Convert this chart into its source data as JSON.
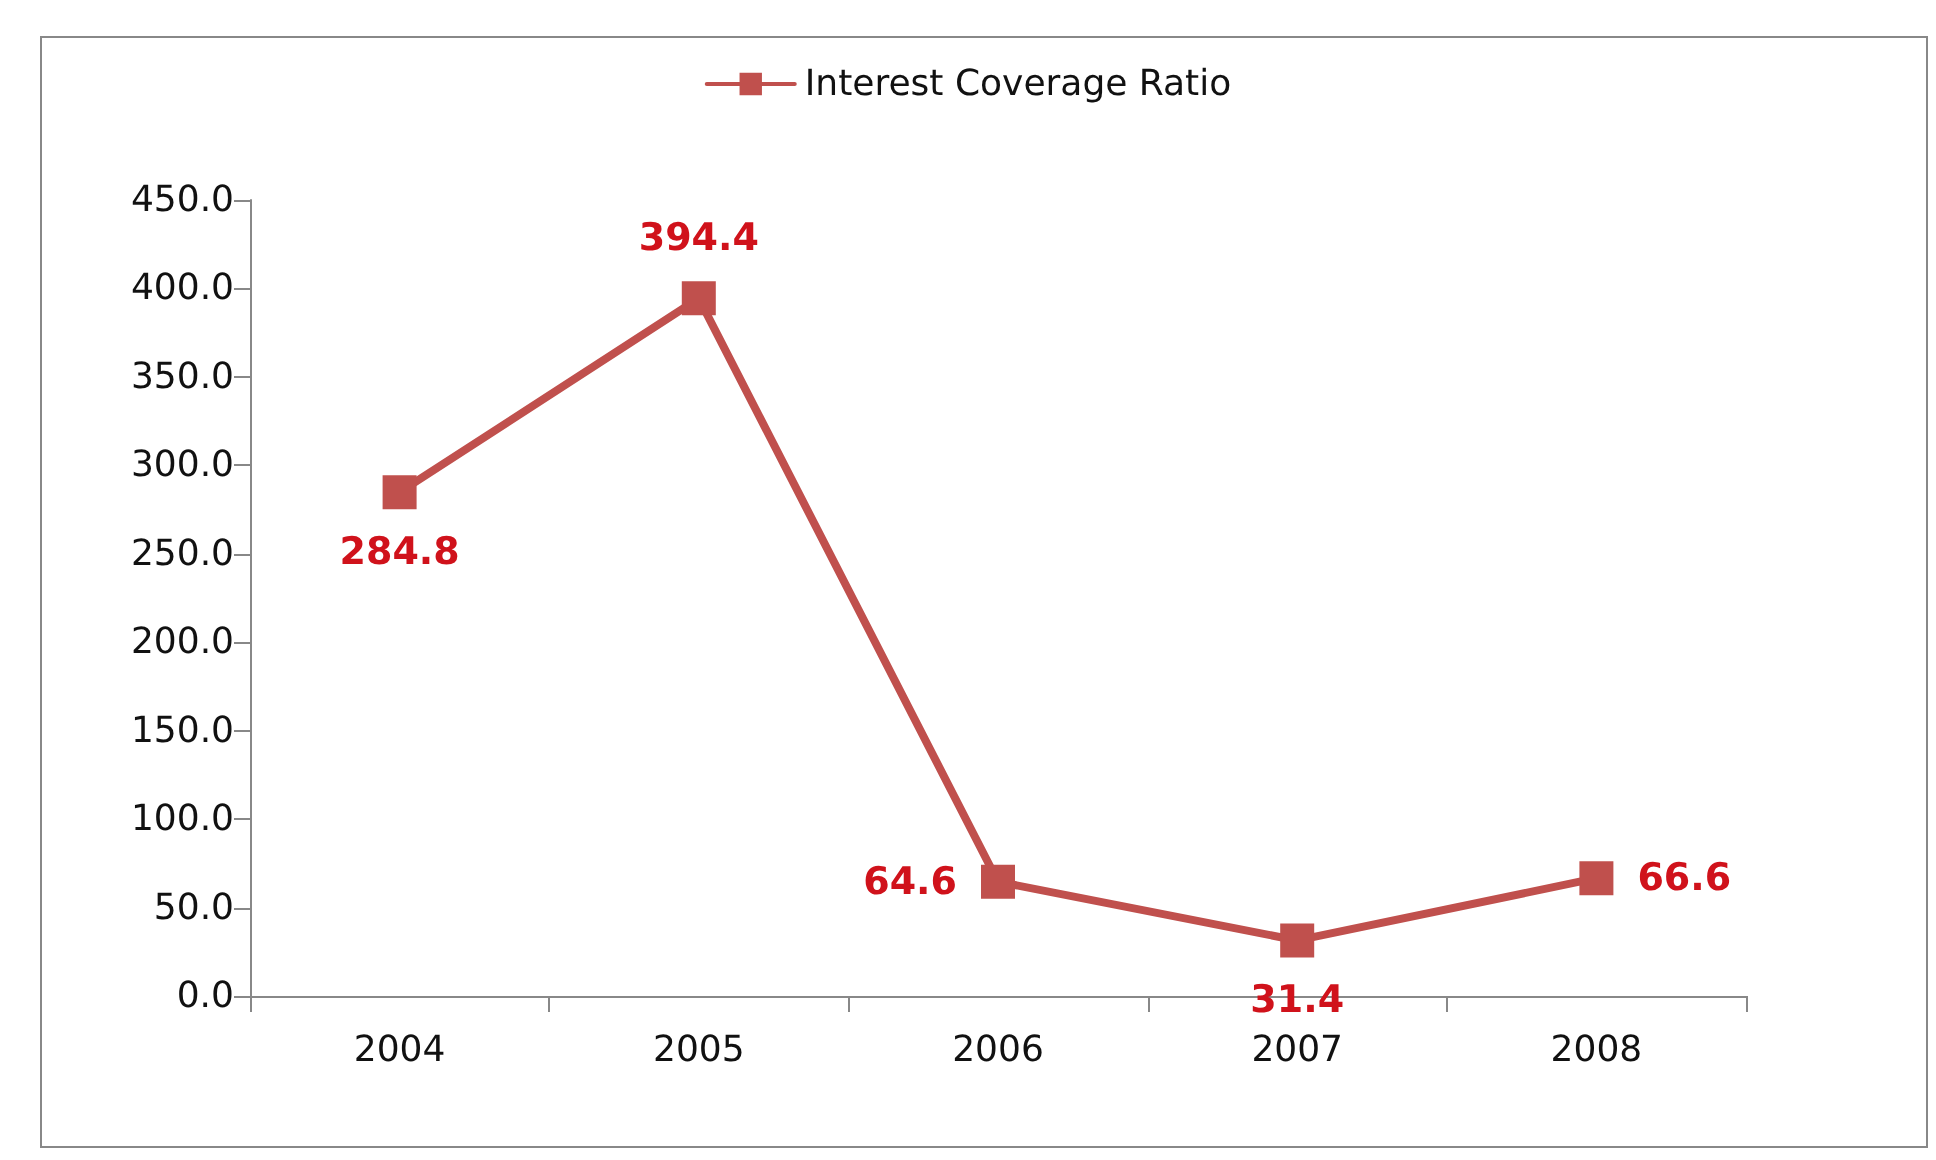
{
  "chart_data": {
    "type": "line",
    "categories": [
      "2004",
      "2005",
      "2006",
      "2007",
      "2008"
    ],
    "series": [
      {
        "name": "Interest Coverage Ratio",
        "color": "#c0504d",
        "values": [
          284.8,
          394.4,
          64.6,
          31.4,
          66.6
        ]
      }
    ],
    "ylim": [
      0,
      450
    ],
    "yticks": [
      {
        "value": 0,
        "label": "0.0"
      },
      {
        "value": 50,
        "label": "50.0"
      },
      {
        "value": 100,
        "label": "100.0"
      },
      {
        "value": 150,
        "label": "150.0"
      },
      {
        "value": 200,
        "label": "200.0"
      },
      {
        "value": 250,
        "label": "250.0"
      },
      {
        "value": 300,
        "label": "300.0"
      },
      {
        "value": 350,
        "label": "350.0"
      },
      {
        "value": 400,
        "label": "400.0"
      },
      {
        "value": 450,
        "label": "450.0"
      }
    ],
    "data_labels": true,
    "legend": "top",
    "marker": "square",
    "line_style": "solid",
    "grid": false
  }
}
